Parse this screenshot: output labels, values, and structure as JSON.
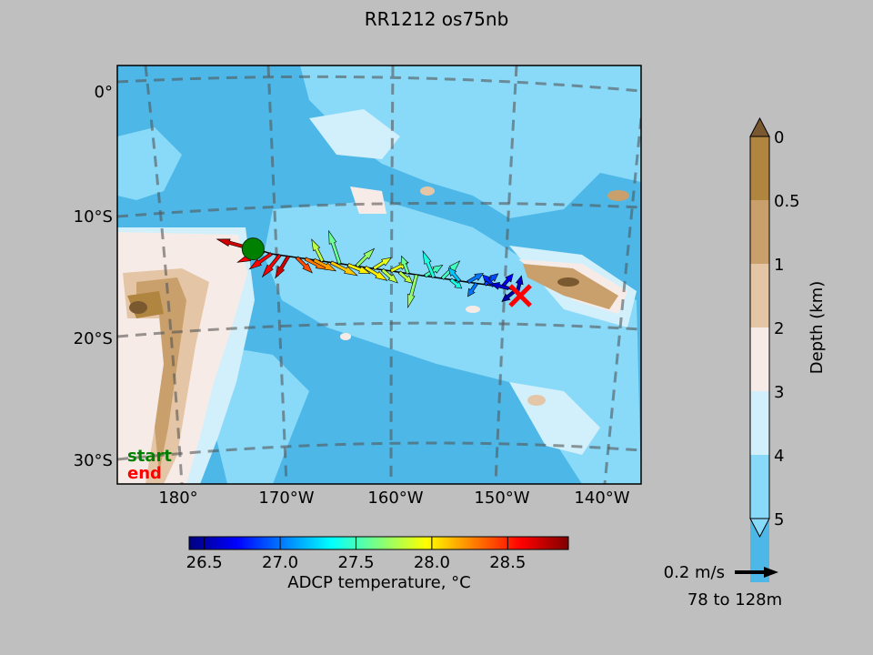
{
  "title": "RR1212 os75nb",
  "map": {
    "lat_labels": [
      "0°",
      "10°S",
      "20°S",
      "30°S"
    ],
    "lon_labels": [
      "180°",
      "170°W",
      "160°W",
      "150°W",
      "140°W"
    ],
    "legend": {
      "start": "start",
      "end": "end",
      "start_color": "#008000",
      "end_color": "#ff0000"
    },
    "colors": {
      "deep_ocean": "#4db8e8",
      "mid_ocean": "#89d9f9",
      "shallow": "#d2f0fb",
      "shelf": "#f7ebe7",
      "land_low": "#e4c6a6",
      "land_mid": "#c9a06b",
      "land_high": "#b08540",
      "peak": "#7a5830"
    }
  },
  "depth_colorbar": {
    "label": "Depth (km)",
    "ticks": [
      "0",
      "0.5",
      "1",
      "2",
      "3",
      "4",
      "5"
    ],
    "colors": [
      "#b08540",
      "#c9a06b",
      "#e4c6a6",
      "#f7ebe7",
      "#d2f0fb",
      "#89d9f9",
      "#4db8e8"
    ],
    "over_color": "#7a5830",
    "under_color": "#89d9f9"
  },
  "temp_colorbar": {
    "label": "ADCP temperature, °C",
    "ticks": [
      "26.5",
      "27.0",
      "27.5",
      "28.0",
      "28.5"
    ],
    "tick_values": [
      26.5,
      27.0,
      27.5,
      28.0,
      28.5
    ],
    "range": [
      26.4,
      28.9
    ]
  },
  "scale_arrow": {
    "label": "0.2 m/s",
    "depth_range": "78 to 128m"
  },
  "chart_data": {
    "type": "vector-map",
    "title": "RR1212 os75nb",
    "lon_range": [
      -186,
      -137
    ],
    "lat_range": [
      -32,
      2
    ],
    "start": {
      "lon": -173.3,
      "lat": -12.9
    },
    "end": {
      "lon": -148.3,
      "lat": -16.7
    },
    "vectors": [
      {
        "lon": -173.0,
        "lat": -13.0,
        "u": -0.18,
        "v": 0.05,
        "t": 28.7
      },
      {
        "lon": -172.3,
        "lat": -13.1,
        "u": -0.12,
        "v": -0.05,
        "t": 28.6
      },
      {
        "lon": -171.6,
        "lat": -13.3,
        "u": -0.1,
        "v": -0.07,
        "t": 28.6
      },
      {
        "lon": -170.8,
        "lat": -13.4,
        "u": -0.08,
        "v": -0.1,
        "t": 28.6
      },
      {
        "lon": -170.0,
        "lat": -13.5,
        "u": -0.06,
        "v": -0.1,
        "t": 28.7
      },
      {
        "lon": -169.2,
        "lat": -13.6,
        "u": 0.07,
        "v": -0.07,
        "t": 28.4
      },
      {
        "lon": -168.4,
        "lat": -13.7,
        "u": 0.1,
        "v": -0.05,
        "t": 28.3
      },
      {
        "lon": -167.6,
        "lat": -13.8,
        "u": 0.1,
        "v": -0.05,
        "t": 28.2
      },
      {
        "lon": -166.8,
        "lat": -13.9,
        "u": -0.05,
        "v": 0.1,
        "t": 27.8
      },
      {
        "lon": -166.0,
        "lat": -14.0,
        "u": 0.12,
        "v": -0.06,
        "t": 28.1
      },
      {
        "lon": -165.2,
        "lat": -14.1,
        "u": -0.05,
        "v": 0.15,
        "t": 27.6
      },
      {
        "lon": -164.4,
        "lat": -14.2,
        "u": 0.1,
        "v": -0.04,
        "t": 28.0
      },
      {
        "lon": -163.6,
        "lat": -14.3,
        "u": 0.08,
        "v": 0.08,
        "t": 27.7
      },
      {
        "lon": -162.8,
        "lat": -14.4,
        "u": 0.1,
        "v": -0.06,
        "t": 28.0
      },
      {
        "lon": -162.0,
        "lat": -14.5,
        "u": 0.08,
        "v": 0.05,
        "t": 27.9
      },
      {
        "lon": -161.2,
        "lat": -14.6,
        "u": 0.07,
        "v": -0.06,
        "t": 27.8
      },
      {
        "lon": -160.4,
        "lat": -14.7,
        "u": 0.08,
        "v": 0.04,
        "t": 27.9
      },
      {
        "lon": -159.6,
        "lat": -14.8,
        "u": 0.06,
        "v": -0.05,
        "t": 27.8
      },
      {
        "lon": -158.8,
        "lat": -14.9,
        "u": -0.03,
        "v": 0.08,
        "t": 27.6
      },
      {
        "lon": -158.0,
        "lat": -15.0,
        "u": -0.04,
        "v": -0.15,
        "t": 27.7
      },
      {
        "lon": -157.2,
        "lat": -15.1,
        "u": 0.08,
        "v": 0.05,
        "t": 27.5
      },
      {
        "lon": -156.4,
        "lat": -15.2,
        "u": -0.05,
        "v": 0.12,
        "t": 27.4
      },
      {
        "lon": -155.6,
        "lat": -15.3,
        "u": 0.08,
        "v": 0.08,
        "t": 27.5
      },
      {
        "lon": -154.8,
        "lat": -15.4,
        "u": 0.05,
        "v": -0.04,
        "t": 27.4
      },
      {
        "lon": -154.0,
        "lat": -15.5,
        "u": -0.05,
        "v": 0.06,
        "t": 27.2
      },
      {
        "lon": -153.2,
        "lat": -15.6,
        "u": 0.07,
        "v": 0.04,
        "t": 27.0
      },
      {
        "lon": -152.4,
        "lat": -15.7,
        "u": -0.04,
        "v": -0.06,
        "t": 27.0
      },
      {
        "lon": -151.6,
        "lat": -15.8,
        "u": 0.06,
        "v": 0.05,
        "t": 26.9
      },
      {
        "lon": -150.8,
        "lat": -15.9,
        "u": -0.05,
        "v": 0.05,
        "t": 26.8
      },
      {
        "lon": -150.0,
        "lat": -16.0,
        "u": 0.05,
        "v": 0.06,
        "t": 26.7
      },
      {
        "lon": -149.4,
        "lat": -16.1,
        "u": -0.08,
        "v": 0.02,
        "t": 26.6
      },
      {
        "lon": -148.8,
        "lat": -16.3,
        "u": -0.06,
        "v": -0.05,
        "t": 26.5
      },
      {
        "lon": -148.6,
        "lat": -16.5,
        "u": 0.02,
        "v": 0.08,
        "t": 26.6
      }
    ]
  }
}
